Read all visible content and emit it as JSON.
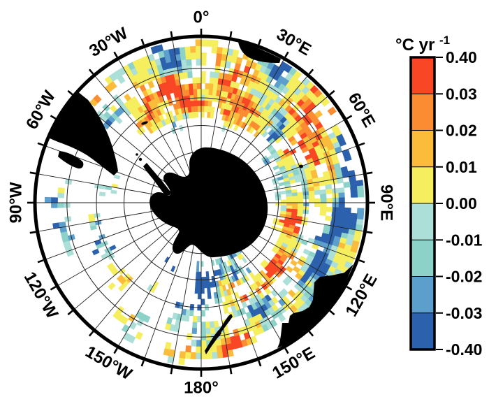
{
  "figure": {
    "background": "#ffffff",
    "foreground": "#000000"
  },
  "colorbar": {
    "title_main": "°C yr",
    "title_sup": "-1",
    "tick_labels": [
      "0.40",
      "0.03",
      "0.02",
      "0.01",
      "0.00",
      "-0.01",
      "-0.02",
      "-0.03",
      "-0.40"
    ],
    "segment_colors_top_to_bottom": [
      "#F94726",
      "#FB8C32",
      "#FBBC3C",
      "#F5EE5F",
      "#ACDFD8",
      "#8DD2C9",
      "#5C9FCD",
      "#2C61AD"
    ],
    "border_color": "#000000"
  },
  "map": {
    "meridian_labels": [
      {
        "text": "0°",
        "deg": 0
      },
      {
        "text": "30°E",
        "deg": 30
      },
      {
        "text": "60°E",
        "deg": 60
      },
      {
        "text": "90°E",
        "deg": 90
      },
      {
        "text": "120°E",
        "deg": 120
      },
      {
        "text": "150°E",
        "deg": 150
      },
      {
        "text": "180°",
        "deg": 180
      },
      {
        "text": "150°W",
        "deg": 210
      },
      {
        "text": "120°W",
        "deg": 240
      },
      {
        "text": "90°W",
        "deg": 270
      },
      {
        "text": "60°W",
        "deg": 300
      },
      {
        "text": "30°W",
        "deg": 330
      }
    ],
    "outer_latitude_deg_south": 30,
    "latitude_circles_deg_south": [
      40,
      50,
      60,
      70,
      80
    ],
    "grid_step_deg": 10,
    "land_color": "#000000",
    "no_data_color": "#ffffff",
    "grid_line_color": "#222222"
  }
}
